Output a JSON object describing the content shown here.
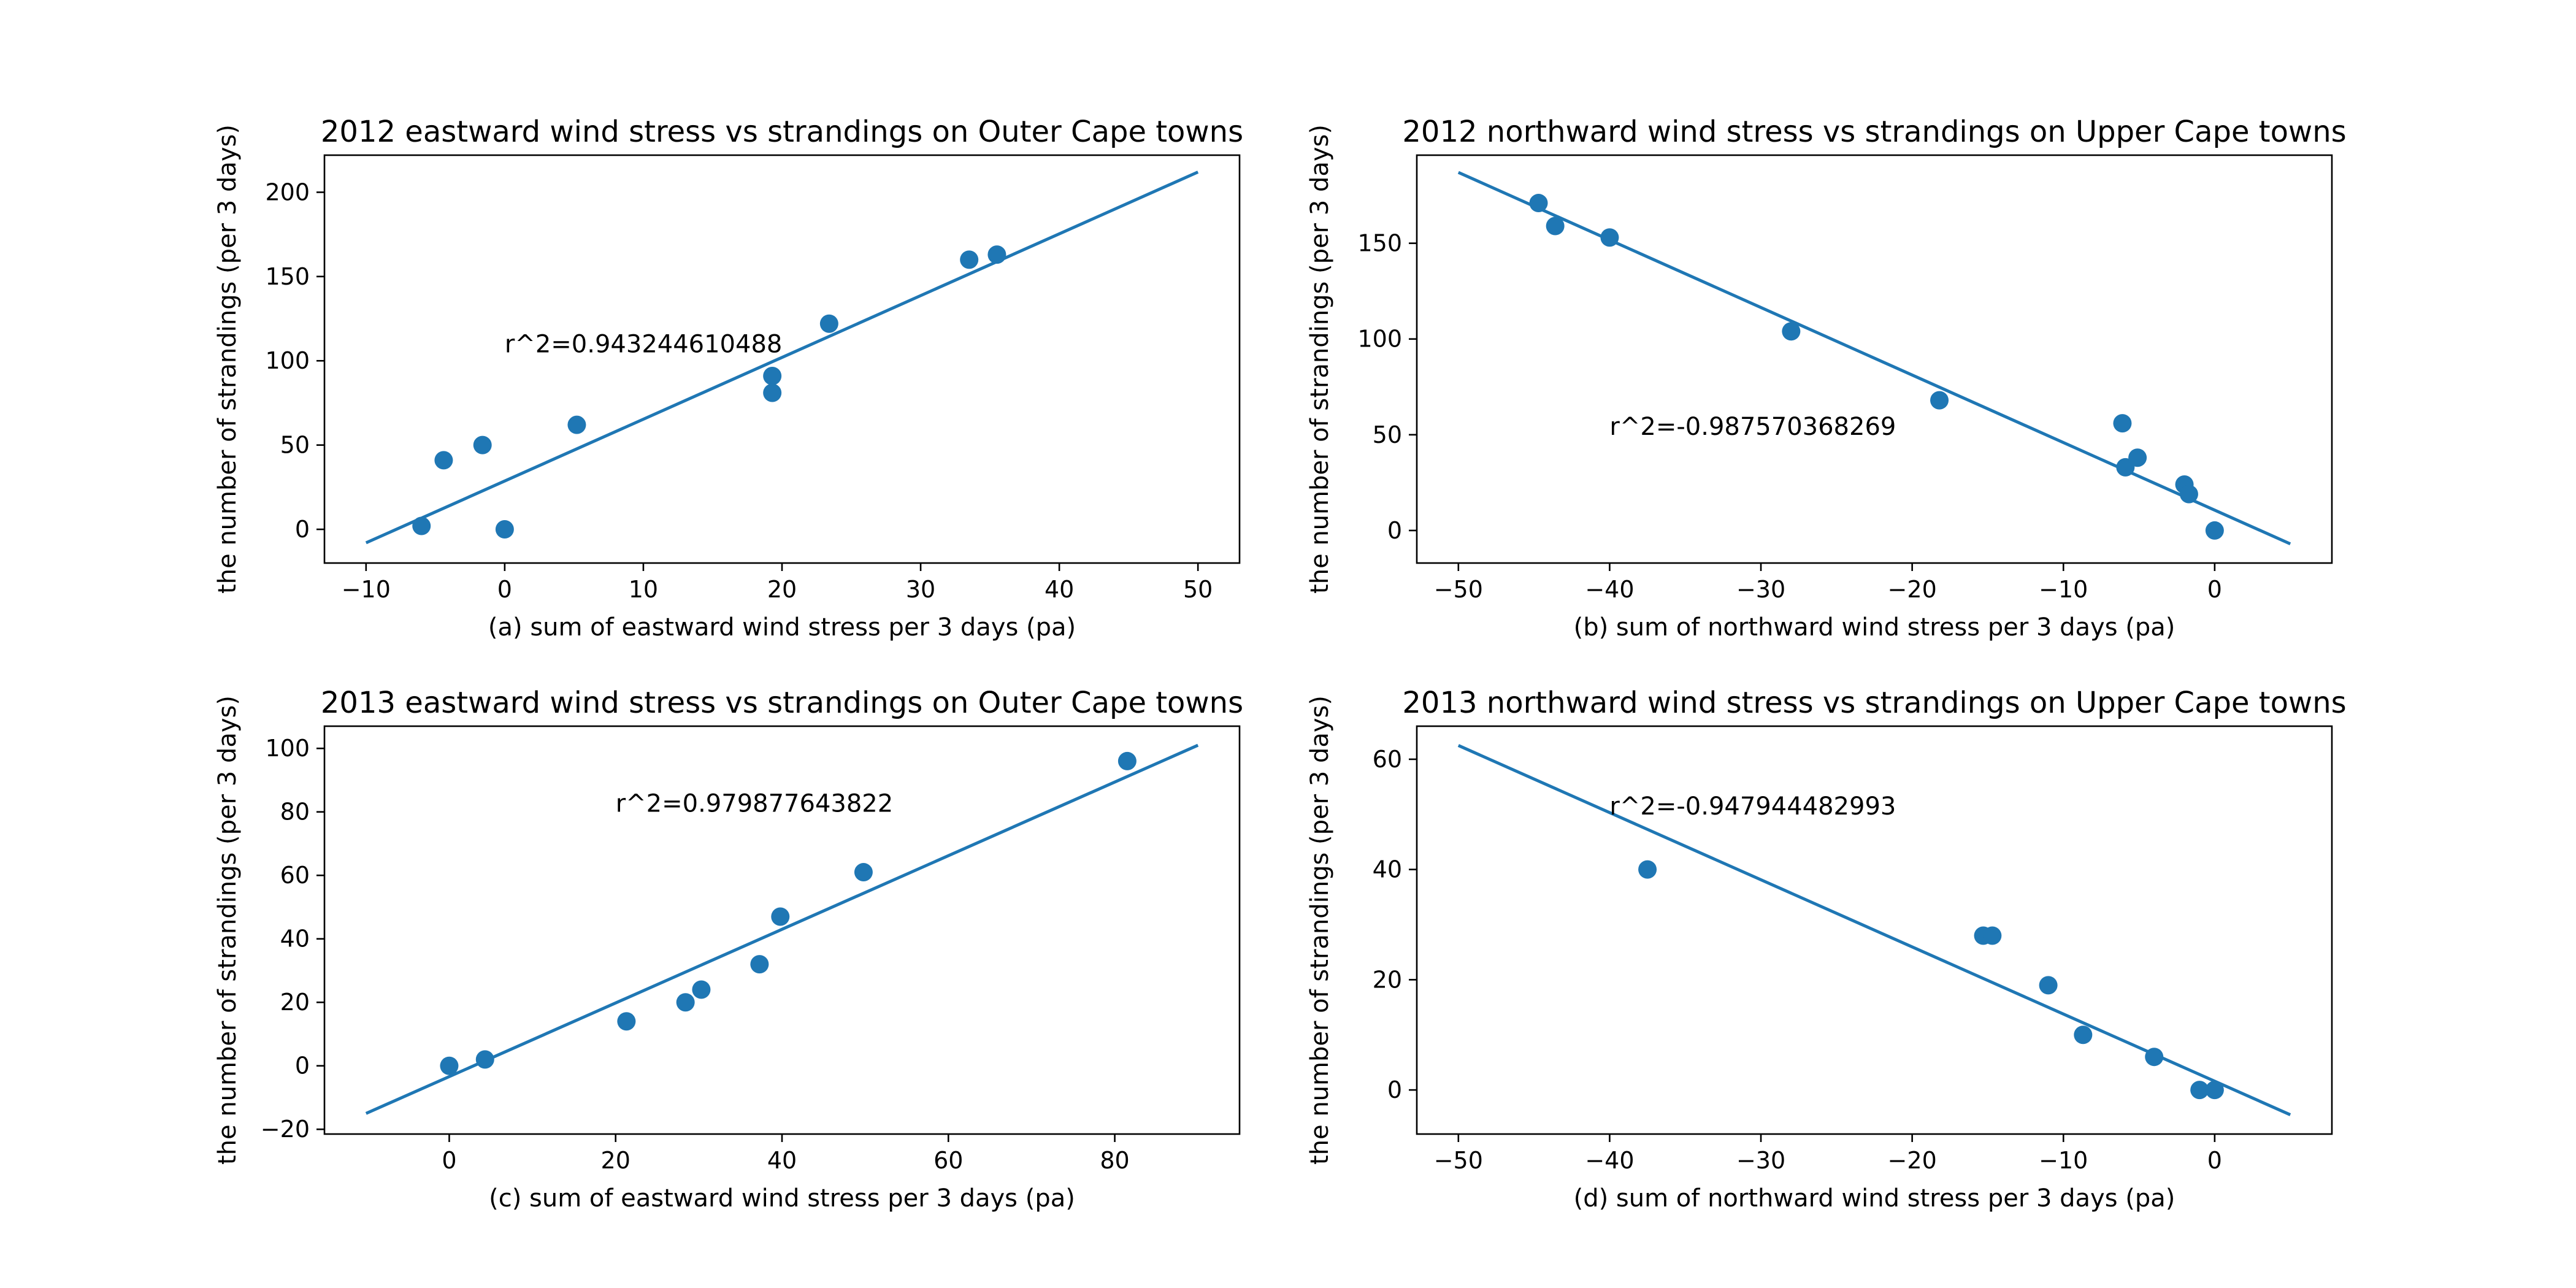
{
  "chart_data": [
    {
      "type": "scatter",
      "title": "2012 eastward wind stress vs strandings on Outer Cape towns",
      "xlabel": "(a) sum of eastward wind stress per 3 days (pa)",
      "ylabel": "the number of strandings (per 3 days)",
      "xlim": [
        -13,
        53
      ],
      "ylim": [
        -20,
        222
      ],
      "xticks": [
        -10,
        0,
        10,
        20,
        30,
        40,
        50
      ],
      "yticks": [
        0,
        50,
        100,
        150,
        200
      ],
      "grid": false,
      "points": [
        {
          "x": -6,
          "y": 2
        },
        {
          "x": -4.4,
          "y": 41
        },
        {
          "x": -1.6,
          "y": 50
        },
        {
          "x": 0,
          "y": 0
        },
        {
          "x": 5.2,
          "y": 62
        },
        {
          "x": 19.3,
          "y": 91
        },
        {
          "x": 19.3,
          "y": 81
        },
        {
          "x": 23.4,
          "y": 122
        },
        {
          "x": 33.5,
          "y": 160
        },
        {
          "x": 35.5,
          "y": 163
        }
      ],
      "fit_line": {
        "x": [
          -10,
          50
        ],
        "y": [
          -8,
          212
        ]
      },
      "annotation": {
        "text": "r^2=0.943244610488",
        "x": 0,
        "y": 105
      }
    },
    {
      "type": "scatter",
      "title": "2012 northward wind stress vs strandings on Upper Cape towns",
      "xlabel": "(b) sum of northward wind stress per 3 days (pa)",
      "ylabel": "the number of strandings (per 3 days)",
      "xlim": [
        -52.75,
        7.75
      ],
      "ylim": [
        -17,
        196
      ],
      "xticks": [
        -50,
        -40,
        -30,
        -20,
        -10,
        0
      ],
      "yticks": [
        0,
        50,
        100,
        150
      ],
      "grid": false,
      "points": [
        {
          "x": -44.7,
          "y": 171
        },
        {
          "x": -43.6,
          "y": 159
        },
        {
          "x": -40,
          "y": 153
        },
        {
          "x": -28,
          "y": 104
        },
        {
          "x": -18.2,
          "y": 68
        },
        {
          "x": -6.1,
          "y": 56
        },
        {
          "x": -5.9,
          "y": 33
        },
        {
          "x": -5.1,
          "y": 38
        },
        {
          "x": -2,
          "y": 24
        },
        {
          "x": -1.7,
          "y": 19
        },
        {
          "x": 0,
          "y": 0
        }
      ],
      "fit_line": {
        "x": [
          -50,
          5
        ],
        "y": [
          187,
          -7
        ]
      },
      "annotation": {
        "text": "r^2=-0.987570368269",
        "x": -40,
        "y": 50
      }
    },
    {
      "type": "scatter",
      "title": "2013 eastward wind stress vs strandings on Outer Cape towns",
      "xlabel": "(c) sum of eastward wind stress per 3 days (pa)",
      "ylabel": "the number of strandings (per 3 days)",
      "xlim": [
        -15,
        95
      ],
      "ylim": [
        -21.5,
        107
      ],
      "xticks": [
        0,
        20,
        40,
        60,
        80
      ],
      "yticks": [
        -20,
        0,
        20,
        40,
        60,
        80,
        100
      ],
      "grid": false,
      "points": [
        {
          "x": 0,
          "y": 0
        },
        {
          "x": 4.3,
          "y": 2
        },
        {
          "x": 21.3,
          "y": 14
        },
        {
          "x": 28.4,
          "y": 20
        },
        {
          "x": 30.3,
          "y": 24
        },
        {
          "x": 37.3,
          "y": 32
        },
        {
          "x": 39.8,
          "y": 47
        },
        {
          "x": 49.8,
          "y": 61
        },
        {
          "x": 81.5,
          "y": 96
        }
      ],
      "fit_line": {
        "x": [
          -10,
          90
        ],
        "y": [
          -15,
          101
        ]
      },
      "annotation": {
        "text": "r^2=0.979877643822",
        "x": 20,
        "y": 80
      }
    },
    {
      "type": "scatter",
      "title": "2013 northward wind stress vs strandings on Upper Cape towns",
      "xlabel": "(d) sum of northward wind stress per 3 days (pa)",
      "ylabel": "the number of strandings (per 3 days)",
      "xlim": [
        -52.75,
        7.75
      ],
      "ylim": [
        -8,
        66
      ],
      "xticks": [
        -50,
        -40,
        -30,
        -20,
        -10,
        0
      ],
      "yticks": [
        0,
        20,
        40,
        60
      ],
      "grid": false,
      "points": [
        {
          "x": -37.5,
          "y": 40
        },
        {
          "x": -15.3,
          "y": 28
        },
        {
          "x": -14.7,
          "y": 28
        },
        {
          "x": -11,
          "y": 19
        },
        {
          "x": -8.7,
          "y": 10
        },
        {
          "x": -4,
          "y": 6
        },
        {
          "x": -1,
          "y": 0
        },
        {
          "x": 0,
          "y": 0
        }
      ],
      "fit_line": {
        "x": [
          -50,
          5
        ],
        "y": [
          62.5,
          -4.5
        ]
      },
      "annotation": {
        "text": "r^2=-0.947944482993",
        "x": -40,
        "y": 50
      }
    }
  ],
  "colors": {
    "points": "#1f77b4",
    "line": "#1f77b4",
    "axes": "#000000"
  }
}
